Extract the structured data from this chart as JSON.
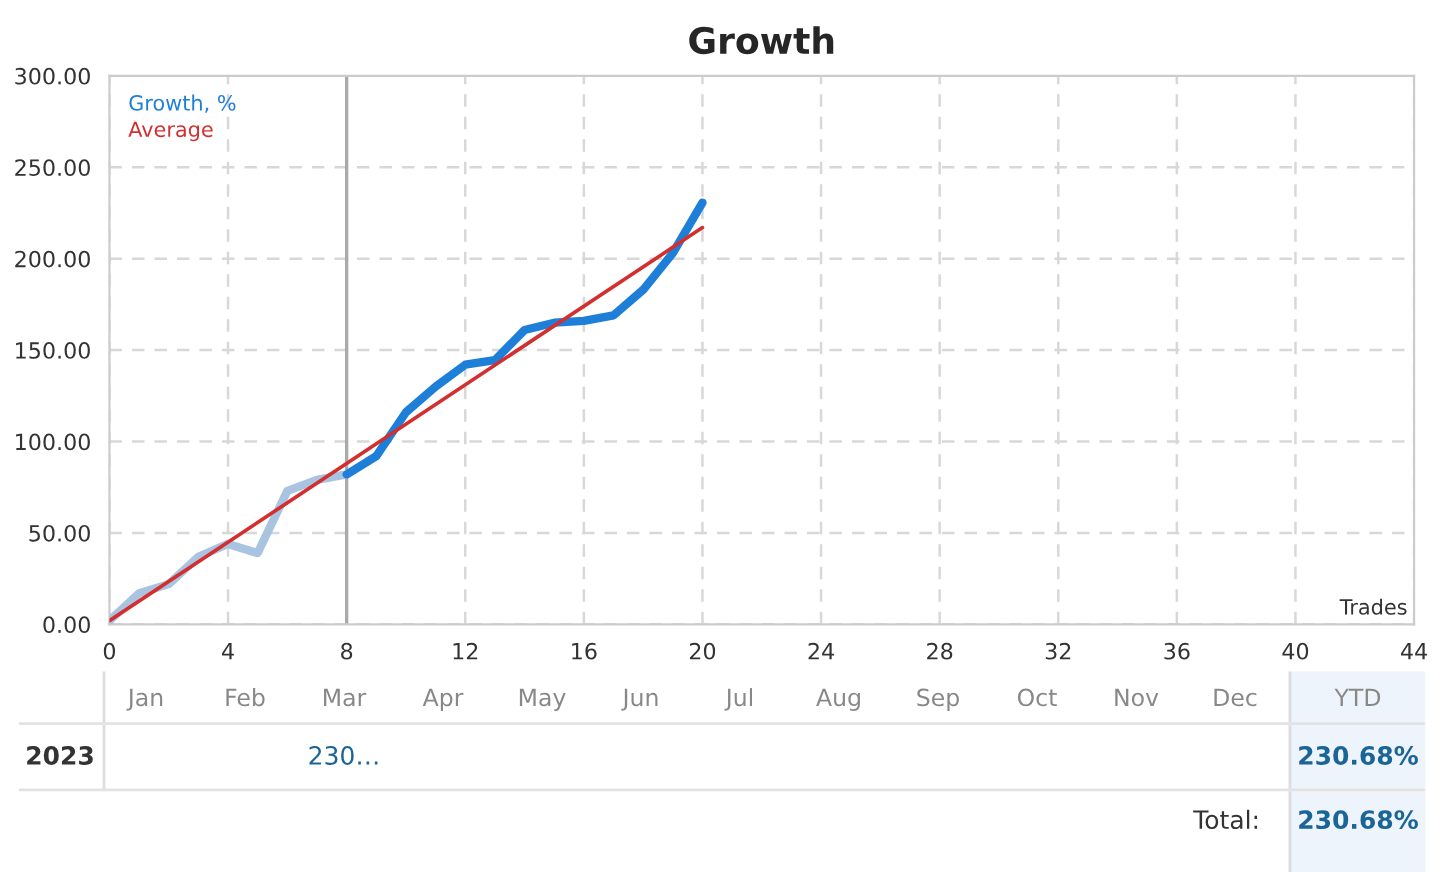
{
  "chart_data": [
    {
      "type": "line",
      "title": "Growth",
      "xlabel": "Trades",
      "xlim": [
        0,
        44
      ],
      "xticks": [
        0,
        4,
        8,
        12,
        16,
        20,
        24,
        28,
        32,
        36,
        40,
        44
      ],
      "ylim": [
        0,
        300
      ],
      "yticks": [
        {
          "value": 0,
          "label": "0.00"
        },
        {
          "value": 50,
          "label": "50.00"
        },
        {
          "value": 100,
          "label": "100.00"
        },
        {
          "value": 150,
          "label": "150.00"
        },
        {
          "value": 200,
          "label": "200.00"
        },
        {
          "value": 250,
          "label": "250.00"
        },
        {
          "value": 300,
          "label": "300.00"
        }
      ],
      "grid": true,
      "legend": "top left",
      "marker": "none",
      "ref_lines": [
        {
          "axis": "x",
          "value": 8,
          "color": "#aaaaaa",
          "line_style": "solid"
        }
      ],
      "series": [
        {
          "color": "#a9c4e0",
          "x": [
            0,
            1,
            2,
            3,
            4,
            5,
            6,
            7,
            8
          ],
          "values": [
            2,
            17,
            22,
            37,
            44,
            39,
            73,
            79,
            82
          ]
        },
        {
          "name": "Growth, %",
          "color": "#1e7fd8",
          "x": [
            8,
            9,
            10,
            11,
            12,
            13,
            14,
            15,
            16,
            17,
            18,
            19,
            20
          ],
          "values": [
            82,
            92,
            116,
            130,
            142,
            144.5,
            161,
            165,
            166,
            169,
            183,
            203,
            230.68
          ]
        },
        {
          "name": "Average",
          "color": "#d32f2f",
          "x": [
            0,
            20
          ],
          "values": [
            2,
            217
          ]
        }
      ]
    },
    {
      "type": "other",
      "categories": [
        "Jan",
        "Feb",
        "Mar",
        "Apr",
        "May",
        "Jun",
        "Jul",
        "Aug",
        "Sep",
        "Oct",
        "Nov",
        "Dec",
        "YTD"
      ],
      "y_categories": [
        "2023"
      ],
      "cell_labels": [
        [
          null,
          null,
          "230…",
          null,
          null,
          null,
          null,
          null,
          null,
          null,
          null,
          null,
          "230.68%"
        ]
      ],
      "annotations": [
        "Total:",
        "230.68%"
      ]
    }
  ]
}
